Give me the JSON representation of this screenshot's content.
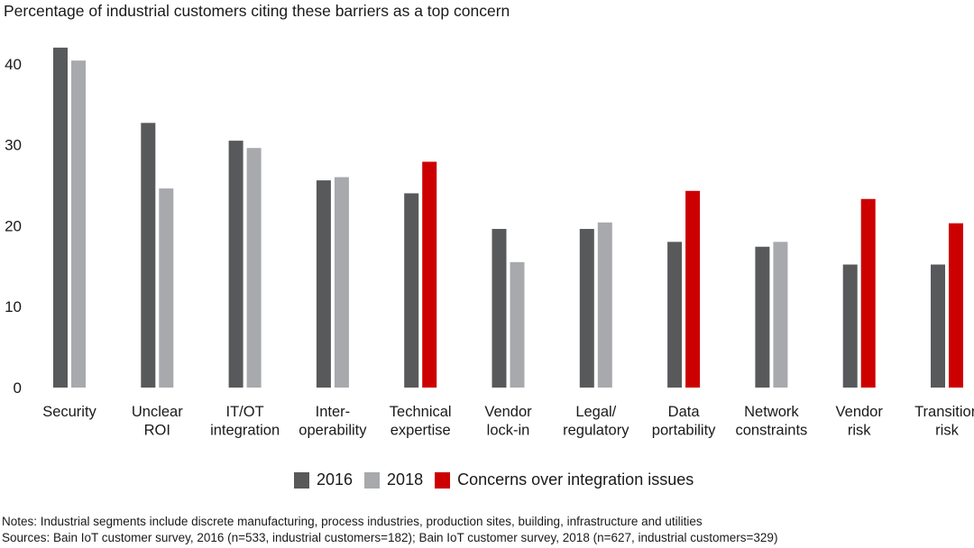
{
  "colors": {
    "dark": "#58595b",
    "light": "#a7a9ac",
    "red": "#cc0000"
  },
  "legend": {
    "item_2016": "2016",
    "item_2018": "2018",
    "item_concern": "Concerns over integration issues"
  },
  "notes": {
    "line1": "Notes: Industrial segments include discrete manufacturing, process industries, production sites, building, infrastructure and utilities",
    "line2": "Sources: Bain IoT customer survey, 2016 (n=533, industrial customers=182); Bain IoT customer survey, 2018 (n=627, industrial customers=329)"
  },
  "chart_data": {
    "type": "bar",
    "title": "Percentage of industrial customers citing these barriers as a top concern",
    "ylim": [
      0,
      45
    ],
    "yticks": [
      0,
      10,
      20,
      30,
      40
    ],
    "grid": false,
    "legend_position": "bottom",
    "categories": [
      [
        "Security"
      ],
      [
        "Unclear",
        "ROI"
      ],
      [
        "IT/OT",
        "integration"
      ],
      [
        "Inter-",
        "operability"
      ],
      [
        "Technical",
        "expertise"
      ],
      [
        "Vendor",
        "lock-in"
      ],
      [
        "Legal/",
        "regulatory"
      ],
      [
        "Data",
        "portability"
      ],
      [
        "Network",
        "constraints"
      ],
      [
        "Vendor",
        "risk"
      ],
      [
        "Transition",
        "risk"
      ]
    ],
    "series": [
      {
        "name": "2016",
        "values": [
          42,
          32.7,
          30.5,
          25.6,
          24,
          19.6,
          19.6,
          18,
          17.4,
          15.2,
          15.2
        ]
      },
      {
        "name": "2018",
        "values": [
          40.4,
          24.6,
          29.6,
          26,
          27.9,
          15.5,
          20.4,
          24.3,
          18,
          23.3,
          20.3
        ]
      }
    ],
    "integration_concern_2018": [
      false,
      false,
      false,
      false,
      true,
      false,
      false,
      true,
      false,
      true,
      true
    ]
  }
}
